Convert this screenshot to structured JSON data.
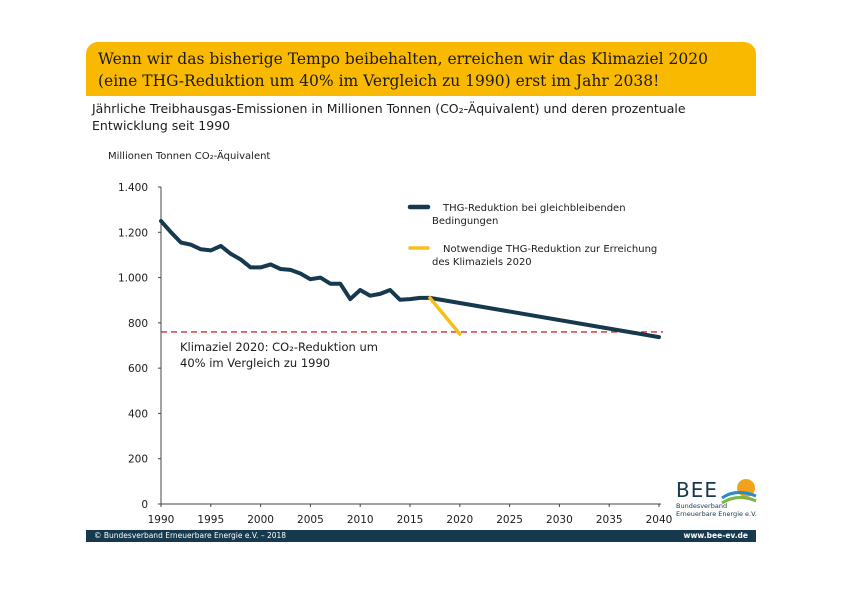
{
  "banner": {
    "text": "Wenn wir das bisherige Tempo beibehalten, erreichen wir das Klimaziel 2020 (eine THG-Reduktion um 40% im Vergleich zu 1990) erst im Jahr 2038!",
    "color": "#f9b900"
  },
  "subtitle": "Jährliche Treibhausgas-Emissionen in Millionen Tonnen (CO₂-Äquivalent) und deren prozentuale Entwicklung seit 1990",
  "footer": {
    "copyright": "© Bundesverband Erneuerbare Energie e.V. – 2018",
    "url": "www.bee-ev.de",
    "color": "#16394d"
  },
  "logo": {
    "name": "BEE",
    "subtitle": "Bundesverband Erneuerbare Energie e.V."
  },
  "chart_data": {
    "type": "line",
    "ylabel": "Millionen Tonnen CO₂-Äquivalent",
    "xlim": [
      1990,
      2040
    ],
    "ylim": [
      0,
      1400
    ],
    "x_ticks": [
      1990,
      1995,
      2000,
      2005,
      2010,
      2015,
      2020,
      2025,
      2030,
      2035,
      2040
    ],
    "y_ticks": [
      0,
      200,
      400,
      600,
      800,
      1000,
      1200,
      1400
    ],
    "y_tick_labels": [
      "0",
      "200",
      "400",
      "600",
      "800",
      "1.000",
      "1.200",
      "1.400"
    ],
    "grid": false,
    "legend_position": "top-right",
    "series": [
      {
        "name": "THG-Reduktion bei gleichbleibenden Bedingungen",
        "color": "#16394d",
        "x": [
          1990,
          1991,
          1992,
          1993,
          1994,
          1995,
          1996,
          1997,
          1998,
          1999,
          2000,
          2001,
          2002,
          2003,
          2004,
          2005,
          2006,
          2007,
          2008,
          2009,
          2010,
          2011,
          2012,
          2013,
          2014,
          2015,
          2016,
          2017,
          2040
        ],
        "y": [
          1250,
          1200,
          1155,
          1145,
          1125,
          1120,
          1140,
          1105,
          1080,
          1045,
          1045,
          1058,
          1038,
          1034,
          1018,
          993,
          1000,
          973,
          973,
          905,
          945,
          920,
          928,
          945,
          902,
          905,
          910,
          910,
          737
        ]
      },
      {
        "name": "Notwendige THG-Reduktion zur Erreichung des Klimaziels 2020",
        "color": "#f5bf1c",
        "x": [
          2017,
          2020
        ],
        "y": [
          910,
          751
        ]
      }
    ],
    "reference_line": {
      "y": 760,
      "color": "#d42a2a",
      "label": "Klimaziel 2020: CO₂-Reduktion um 40% im Vergleich zu 1990"
    }
  }
}
